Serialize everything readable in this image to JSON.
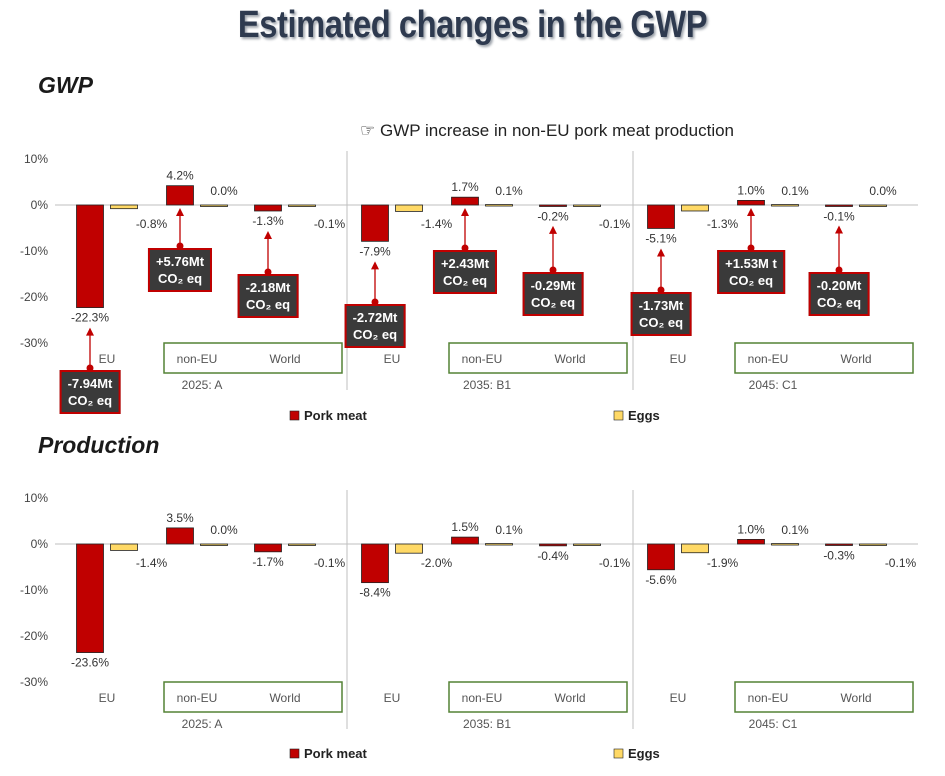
{
  "title": "Estimated changes in the GWP",
  "sections": {
    "gwp_label": "GWP",
    "production_label": "Production"
  },
  "note": {
    "icon": "pointing-hand-icon",
    "text": "GWP increase in non-EU pork meat production"
  },
  "colors": {
    "pork": "#c00000",
    "eggs": "#ffd966",
    "group_box": "#548235",
    "callout_bg": "#3a3a3a",
    "callout_border": "#c00000"
  },
  "chart_data": [
    {
      "type": "bar",
      "title": "GWP",
      "ylim": [
        -30,
        10
      ],
      "yticks": [
        "10%",
        "0%",
        "-10%",
        "-20%",
        "-30%"
      ],
      "scenarios": [
        "2025: A",
        "2035: B1",
        "2045: C1"
      ],
      "regions": [
        "EU",
        "non-EU",
        "World"
      ],
      "series": [
        {
          "name": "Pork meat",
          "values": [
            [
              -22.3,
              4.2,
              -1.3
            ],
            [
              -7.9,
              1.7,
              -0.2
            ],
            [
              -5.1,
              1.0,
              -0.1
            ]
          ],
          "labels": [
            [
              "-22.3%",
              "4.2%",
              "-1.3%"
            ],
            [
              "-7.9%",
              "1.7%",
              "-0.2%"
            ],
            [
              "-5.1%",
              "1.0%",
              "-0.1%"
            ]
          ]
        },
        {
          "name": "Eggs",
          "values": [
            [
              -0.8,
              0.0,
              -0.1
            ],
            [
              -1.4,
              0.1,
              -0.1
            ],
            [
              -1.3,
              0.1,
              0.0
            ]
          ],
          "labels": [
            [
              "-0.8%",
              "0.0%",
              "-0.1%"
            ],
            [
              "-1.4%",
              "0.1%",
              "-0.1%"
            ],
            [
              "-1.3%",
              "0.1%",
              "0.0%"
            ]
          ]
        }
      ],
      "annotations": [
        [
          "-7.94Mt CO₂ eq",
          "+5.76Mt CO₂ eq",
          "-2.18Mt CO₂ eq"
        ],
        [
          "-2.72Mt CO₂ eq",
          "+2.43Mt CO₂ eq",
          "-0.29Mt CO₂ eq"
        ],
        [
          "-1.73Mt CO₂ eq",
          "+1.53M t CO₂ eq",
          "-0.20Mt CO₂ eq"
        ]
      ],
      "legend": [
        "Pork meat",
        "Eggs"
      ]
    },
    {
      "type": "bar",
      "title": "Production",
      "ylim": [
        -30,
        10
      ],
      "yticks": [
        "10%",
        "0%",
        "-10%",
        "-20%",
        "-30%"
      ],
      "scenarios": [
        "2025: A",
        "2035: B1",
        "2045: C1"
      ],
      "regions": [
        "EU",
        "non-EU",
        "World"
      ],
      "series": [
        {
          "name": "Pork meat",
          "values": [
            [
              -23.6,
              3.5,
              -1.7
            ],
            [
              -8.4,
              1.5,
              -0.4
            ],
            [
              -5.6,
              1.0,
              -0.3
            ]
          ],
          "labels": [
            [
              "-23.6%",
              "3.5%",
              "-1.7%"
            ],
            [
              "-8.4%",
              "1.5%",
              "-0.4%"
            ],
            [
              "-5.6%",
              "1.0%",
              "-0.3%"
            ]
          ]
        },
        {
          "name": "Eggs",
          "values": [
            [
              -1.4,
              0.0,
              -0.1
            ],
            [
              -2.0,
              0.1,
              -0.1
            ],
            [
              -1.9,
              0.1,
              -0.1
            ]
          ],
          "labels": [
            [
              "-1.4%",
              "0.0%",
              "-0.1%"
            ],
            [
              "-2.0%",
              "0.1%",
              "-0.1%"
            ],
            [
              "-1.9%",
              "0.1%",
              "-0.1%"
            ]
          ]
        }
      ],
      "legend": [
        "Pork meat",
        "Eggs"
      ]
    }
  ]
}
